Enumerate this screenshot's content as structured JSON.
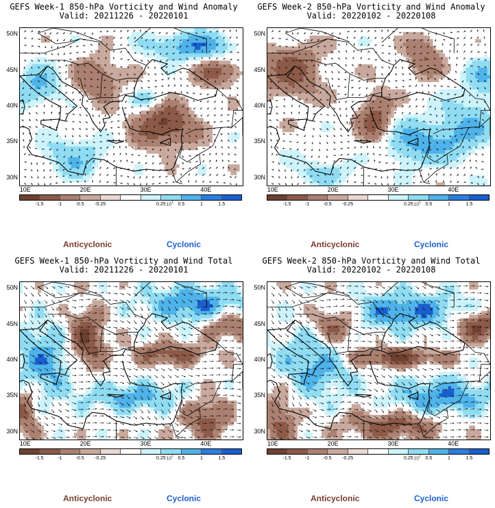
{
  "panels": [
    {
      "title": "GEFS Week-1 850-hPa Vorticity and Wind Anomaly",
      "valid": "Valid: 20211226 - 20220101",
      "pattern": "anomaly1"
    },
    {
      "title": "GEFS Week-2 850-hPa Vorticity and Wind Anomaly",
      "valid": "Valid: 20220102 - 20220108",
      "pattern": "anomaly2"
    },
    {
      "title": "GEFS Week-1 850-hPa Vorticity and Wind Total",
      "valid": "Valid: 20211226 - 20220101",
      "pattern": "total1"
    },
    {
      "title": "GEFS Week-2 850-hPa Vorticity and Wind Total",
      "valid": "Valid: 20220102 - 20220108",
      "pattern": "total2"
    }
  ],
  "axes": {
    "lat_labels": [
      "50N",
      "45N",
      "40N",
      "35N",
      "30N"
    ],
    "lon_labels": [
      "10E",
      "20E",
      "30E",
      "40E"
    ],
    "lat_range": [
      29,
      51
    ],
    "lon_range": [
      9,
      46
    ]
  },
  "colorbar": {
    "labels": [
      "-1.5",
      "-1",
      "-0.5",
      "-0.25",
      "0.25",
      "0.5",
      "1",
      "1.5"
    ],
    "colors": [
      "#6e4130",
      "#8d5a48",
      "#ab8070",
      "#c9a99d",
      "#ead8d1",
      "#ffffff",
      "#cdf3fb",
      "#8fdcf3",
      "#4fb3ea",
      "#2a7ee0",
      "#1a5fd0"
    ],
    "scale": "10",
    "scale_exp": "1"
  },
  "legend": {
    "anticyclonic": "Anticyclonic",
    "cyclonic": "Cyclonic"
  },
  "colors": {
    "anticyclonic": "#7a3b2e",
    "cyclonic": "#1a5fd0"
  }
}
